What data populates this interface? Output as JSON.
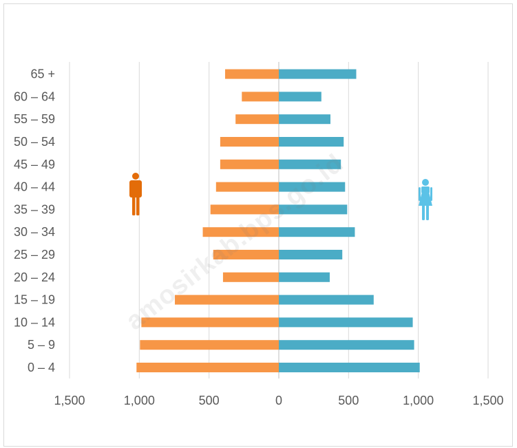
{
  "watermark": "amosirkab.bps.go.id",
  "colors": {
    "male": "#F79646",
    "female": "#4BACC6",
    "male_icon": "#E36C09",
    "female_icon": "#5BC2E7",
    "grid": "#d9d9d9",
    "text": "#595959"
  },
  "icons": {
    "male": "male-person-icon",
    "female": "female-person-icon"
  },
  "chart_data": {
    "type": "bar",
    "orientation": "horizontal",
    "subtype": "population-pyramid",
    "categories": [
      "0 – 4",
      "5 – 9",
      "10 – 14",
      "15 – 19",
      "20 – 24",
      "25 – 29",
      "30 – 34",
      "35 – 39",
      "40 – 44",
      "45 – 49",
      "50 – 54",
      "55 – 59",
      "60 – 64",
      "65 +"
    ],
    "series": [
      {
        "side": "left",
        "values": [
          1020,
          995,
          985,
          745,
          400,
          470,
          545,
          490,
          450,
          420,
          420,
          310,
          265,
          385
        ]
      },
      {
        "side": "right",
        "values": [
          1010,
          970,
          960,
          680,
          365,
          455,
          545,
          490,
          475,
          445,
          465,
          370,
          305,
          555
        ]
      }
    ],
    "xlim": [
      -1500,
      1500
    ],
    "x_ticks": [
      -1500,
      -1000,
      -500,
      0,
      500,
      1000,
      1500
    ],
    "x_tick_labels": [
      "1,500",
      "1,000",
      "500",
      "0",
      "500",
      "1,000",
      "1,500"
    ],
    "grid": "vertical",
    "legend": "none"
  }
}
